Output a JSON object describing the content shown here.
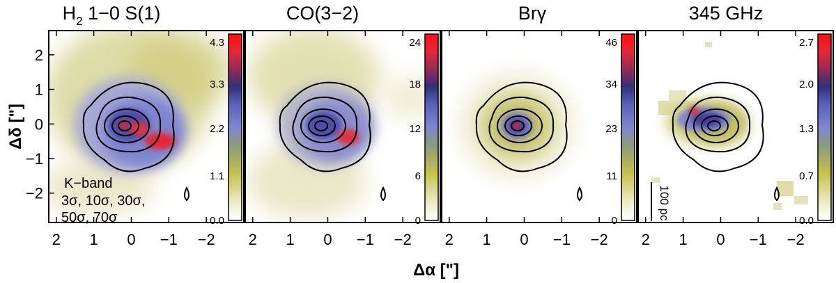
{
  "chart_data": {
    "type": "heatmap",
    "xlabel": "Δα [\"]",
    "ylabel": "Δδ [\"]",
    "x_ticks": [
      "2",
      "1",
      "0",
      "−1",
      "−2"
    ],
    "y_ticks": [
      "2",
      "1",
      "0",
      "−1",
      "−2"
    ],
    "x_tick_values": [
      2,
      1,
      0,
      -1,
      -2
    ],
    "y_tick_values": [
      2,
      1,
      0,
      -1,
      -2
    ],
    "xlim": [
      2.2,
      -3.0
    ],
    "ylim": [
      -2.85,
      2.7
    ],
    "panels": [
      {
        "title_main": "H",
        "title_sub": "2",
        "title_rest": " 1−0 S(1)",
        "colorbar_ticks": [
          "4.3",
          "3.3",
          "2.2",
          "1.1",
          "0.0"
        ],
        "colorbar_values": [
          4.3,
          3.3,
          2.2,
          1.1,
          0.0
        ],
        "annotation": [
          "K−band",
          "3σ, 10σ, 30σ,",
          "50σ, 70σ"
        ]
      },
      {
        "title_main": "CO(3−2)",
        "colorbar_ticks": [
          "24",
          "18",
          "12",
          "6",
          "0"
        ],
        "colorbar_values": [
          24,
          18,
          12,
          6,
          0
        ]
      },
      {
        "title_main": "Brγ",
        "colorbar_ticks": [
          "46",
          "34",
          "23",
          "11",
          "0"
        ],
        "colorbar_values": [
          46,
          34,
          23,
          11,
          0
        ]
      },
      {
        "title_main": "345 GHz",
        "colorbar_ticks": [
          "2.7",
          "2.0",
          "1.3",
          "0.7",
          "0.0"
        ],
        "colorbar_values": [
          2.7,
          2.0,
          1.3,
          0.7,
          0.0
        ],
        "scalebar_label": "100 pc"
      }
    ]
  }
}
